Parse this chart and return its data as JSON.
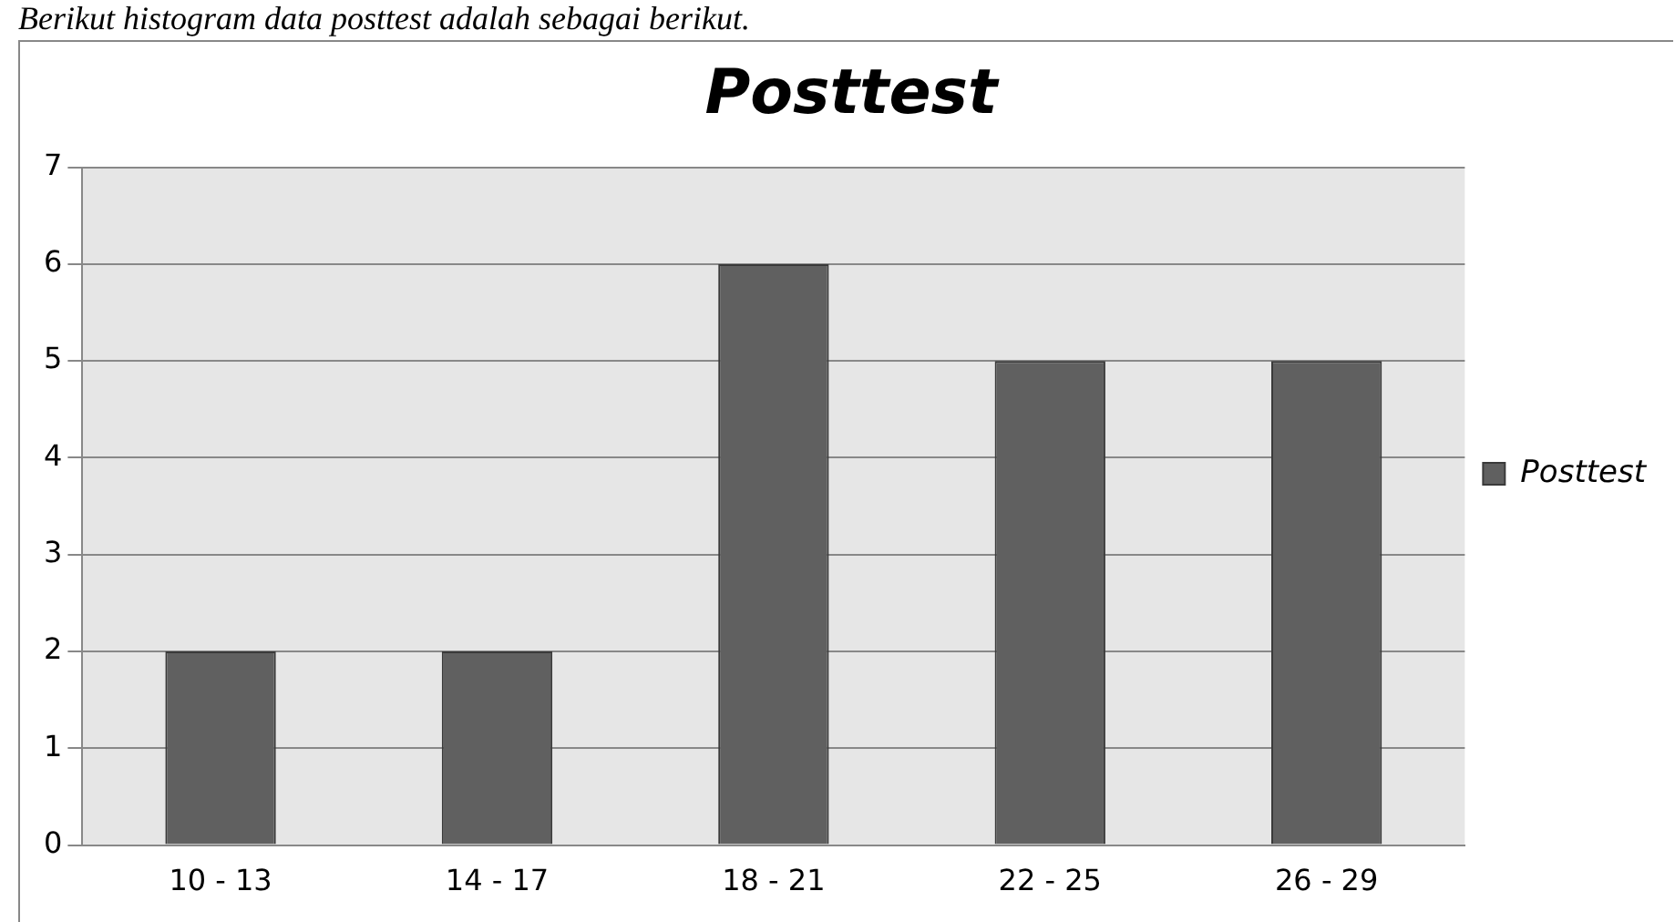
{
  "chart_data": {
    "type": "bar",
    "title": "Posttest",
    "annotations": [
      "Berikut histogram data posttest adalah sebagai berikut."
    ],
    "categories": [
      "10 - 13",
      "14 - 17",
      "18 - 21",
      "22 - 25",
      "26 - 29"
    ],
    "series": [
      {
        "name": "Posttest",
        "color": "#606060",
        "values": [
          2,
          2,
          6,
          5,
          5
        ]
      }
    ],
    "ylim": [
      0,
      7
    ],
    "yticks": [
      0,
      1,
      2,
      3,
      4,
      5,
      6,
      7
    ],
    "grid": "y",
    "legend": "right"
  }
}
